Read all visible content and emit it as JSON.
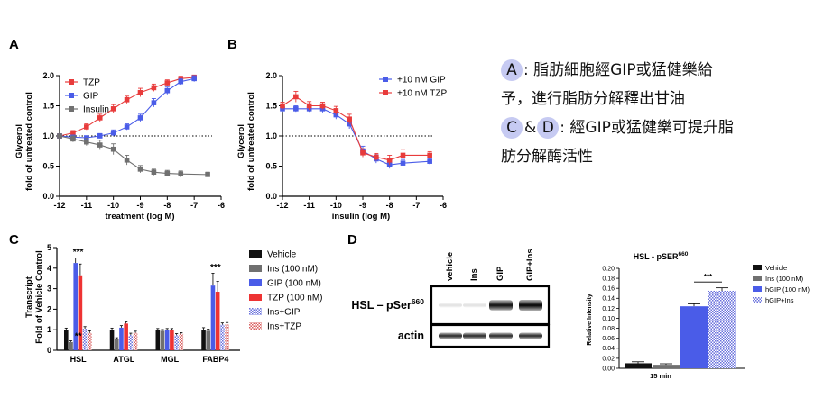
{
  "panel_labels": {
    "a": "A",
    "b": "B",
    "c": "C",
    "d": "D"
  },
  "annotation": {
    "line1_badge": "A",
    "line1_text": ": 脂肪細胞經GIP或猛健樂給",
    "line2_text": "予，進行脂肪分解釋出甘油",
    "line3_badge1": "C",
    "line3_amp": "&",
    "line3_badge2": "D",
    "line3_text": ": 經GIP或猛健樂可提升脂",
    "line4_text": "肪分解酶活性"
  },
  "chart_data": [
    {
      "id": "A",
      "type": "line",
      "title": "",
      "xlabel": "treatment (log M)",
      "ylabel_line1": "Glycerol",
      "ylabel_line2": "fold of untreated control",
      "xlim": [
        -12,
        -6
      ],
      "ylim": [
        0,
        2.0
      ],
      "xticks": [
        "-12",
        "-11",
        "-10",
        "-9",
        "-8",
        "-7",
        "-6"
      ],
      "yticks": [
        "0.0",
        "0.5",
        "1.0",
        "1.5",
        "2.0"
      ],
      "reference_line": 1.0,
      "legend_position": "top-left",
      "series": [
        {
          "name": "TZP",
          "color": "#e83b3b",
          "marker": "square",
          "x": [
            -12,
            -11.5,
            -11,
            -10.5,
            -10,
            -9.5,
            -9,
            -8.5,
            -8,
            -7.5,
            -7
          ],
          "y": [
            1.0,
            1.05,
            1.15,
            1.3,
            1.45,
            1.6,
            1.72,
            1.8,
            1.88,
            1.95,
            1.97
          ],
          "err": [
            0.03,
            0.04,
            0.05,
            0.06,
            0.07,
            0.06,
            0.07,
            0.06,
            0.05,
            0.04,
            0.04
          ]
        },
        {
          "name": "GIP",
          "color": "#4a5ce8",
          "marker": "square",
          "x": [
            -12,
            -11.5,
            -11,
            -10.5,
            -10,
            -9.5,
            -9,
            -8.5,
            -8,
            -7.5,
            -7
          ],
          "y": [
            1.0,
            0.98,
            0.97,
            1.0,
            1.05,
            1.15,
            1.3,
            1.55,
            1.75,
            1.9,
            1.95
          ],
          "err": [
            0.03,
            0.03,
            0.03,
            0.04,
            0.05,
            0.05,
            0.06,
            0.07,
            0.06,
            0.05,
            0.05
          ]
        },
        {
          "name": "Insulin",
          "color": "#707070",
          "marker": "square",
          "x": [
            -12,
            -11.5,
            -11,
            -10.5,
            -10,
            -9.5,
            -9,
            -8.5,
            -8,
            -7.5,
            -6.5
          ],
          "y": [
            1.0,
            0.95,
            0.9,
            0.85,
            0.78,
            0.6,
            0.45,
            0.4,
            0.38,
            0.37,
            0.36
          ],
          "err": [
            0.03,
            0.05,
            0.06,
            0.08,
            0.09,
            0.08,
            0.06,
            0.05,
            0.05,
            0.05,
            0.04
          ]
        }
      ]
    },
    {
      "id": "B",
      "type": "line",
      "title": "",
      "xlabel": "insulin (log M)",
      "ylabel_line1": "Glycerol",
      "ylabel_line2": "fold of untreated control",
      "xlim": [
        -12,
        -6
      ],
      "ylim": [
        0,
        2.0
      ],
      "xticks": [
        "-12",
        "-11",
        "-10",
        "-9",
        "-8",
        "-7",
        "-6"
      ],
      "yticks": [
        "0.0",
        "0.5",
        "1.0",
        "1.5",
        "2.0"
      ],
      "reference_line": 1.0,
      "legend_position": "top-right",
      "series": [
        {
          "name": "+10 nM GIP",
          "color": "#4a5ce8",
          "marker": "square",
          "x": [
            -12,
            -11.5,
            -11,
            -10.5,
            -10,
            -9.5,
            -9,
            -8.5,
            -8,
            -7.5,
            -6.5
          ],
          "y": [
            1.45,
            1.45,
            1.45,
            1.45,
            1.35,
            1.2,
            0.75,
            0.62,
            0.52,
            0.55,
            0.58
          ],
          "err": [
            0.05,
            0.05,
            0.05,
            0.06,
            0.07,
            0.08,
            0.08,
            0.07,
            0.06,
            0.06,
            0.05
          ]
        },
        {
          "name": "+10 nM TZP",
          "color": "#e83b3b",
          "marker": "square",
          "x": [
            -12,
            -11.5,
            -11,
            -10.5,
            -10,
            -9.5,
            -9,
            -8.5,
            -8,
            -7.5,
            -6.5
          ],
          "y": [
            1.5,
            1.65,
            1.5,
            1.5,
            1.42,
            1.28,
            0.72,
            0.65,
            0.6,
            0.68,
            0.68
          ],
          "err": [
            0.06,
            0.09,
            0.07,
            0.06,
            0.07,
            0.08,
            0.07,
            0.06,
            0.08,
            0.1,
            0.06
          ]
        }
      ]
    },
    {
      "id": "C",
      "type": "bar",
      "title": "",
      "xlabel": "",
      "ylabel_line1": "Transcript",
      "ylabel_line2": "Fold of Vehicle Control",
      "ylim": [
        0,
        5
      ],
      "yticks": [
        "0",
        "1",
        "2",
        "3",
        "4",
        "5"
      ],
      "categories": [
        "HSL",
        "ATGL",
        "MGL",
        "FABP4"
      ],
      "legend_position": "right",
      "series": [
        {
          "name": "Vehicle",
          "color": "#111111",
          "pattern": "solid",
          "values": [
            1.0,
            1.0,
            1.0,
            1.0
          ],
          "err": [
            0.08,
            0.08,
            0.06,
            0.1
          ]
        },
        {
          "name": "Ins (100 nM)",
          "color": "#707070",
          "pattern": "solid",
          "values": [
            0.4,
            0.55,
            0.95,
            0.95
          ],
          "err": [
            0.06,
            0.06,
            0.06,
            0.08
          ]
        },
        {
          "name": "GIP (100 nM)",
          "color": "#4a5ce8",
          "pattern": "solid",
          "values": [
            4.25,
            1.1,
            1.0,
            3.15
          ],
          "err": [
            0.25,
            0.1,
            0.06,
            0.6
          ]
        },
        {
          "name": "TZP (100 nM)",
          "color": "#ee3333",
          "pattern": "solid",
          "values": [
            3.65,
            1.3,
            1.0,
            2.85
          ],
          "err": [
            0.55,
            0.08,
            0.06,
            0.5
          ]
        },
        {
          "name": "Ins+GIP",
          "color": "#8a90e0",
          "pattern": "hatch",
          "values": [
            1.05,
            0.75,
            0.75,
            1.25
          ],
          "err": [
            0.1,
            0.08,
            0.06,
            0.08
          ]
        },
        {
          "name": "Ins+TZP",
          "color": "#e08080",
          "pattern": "hatch",
          "values": [
            0.85,
            0.85,
            0.8,
            1.25
          ],
          "err": [
            0.1,
            0.08,
            0.06,
            0.1
          ]
        }
      ],
      "annotations": [
        {
          "text": "***",
          "category": "HSL",
          "level": 4.65
        },
        {
          "text": "**",
          "category": "HSL",
          "level": 0.55
        },
        {
          "text": "***",
          "category": "FABP4",
          "level": 3.9
        }
      ]
    },
    {
      "id": "D-bar",
      "type": "bar",
      "title": "HSL - pSER",
      "title_sup": "660",
      "xlabel": "15 min",
      "ylabel": "Relative Intensity",
      "ylim": [
        0,
        0.2
      ],
      "yticks": [
        "0.00",
        "0.02",
        "0.04",
        "0.06",
        "0.08",
        "0.10",
        "0.12",
        "0.14",
        "0.16",
        "0.18",
        "0.20"
      ],
      "legend_position": "right",
      "series": [
        {
          "name": "Vehicle",
          "color": "#111111",
          "pattern": "solid",
          "value": 0.01,
          "err": 0.003
        },
        {
          "name": "Ins (100 nM)",
          "color": "#707070",
          "pattern": "solid",
          "value": 0.007,
          "err": 0.002
        },
        {
          "name": "hGIP (100 nM)",
          "color": "#4a5ce8",
          "pattern": "solid",
          "value": 0.124,
          "err": 0.005
        },
        {
          "name": "hGIP+Ins",
          "color": "#8a90e0",
          "pattern": "hatch",
          "value": 0.155,
          "err": 0.006
        }
      ],
      "annotations": [
        {
          "text": "***",
          "level": 0.178
        }
      ]
    }
  ],
  "blot": {
    "lanes": [
      "vehicle",
      "Ins",
      "GIP",
      "GIP+Ins"
    ],
    "rows": [
      {
        "label": "HSL – pSer",
        "sup": "660",
        "intensities": [
          0.12,
          0.1,
          0.95,
          1.0
        ]
      },
      {
        "label": "actin",
        "sup": "",
        "intensities": [
          0.85,
          0.85,
          0.85,
          0.85
        ]
      }
    ]
  }
}
